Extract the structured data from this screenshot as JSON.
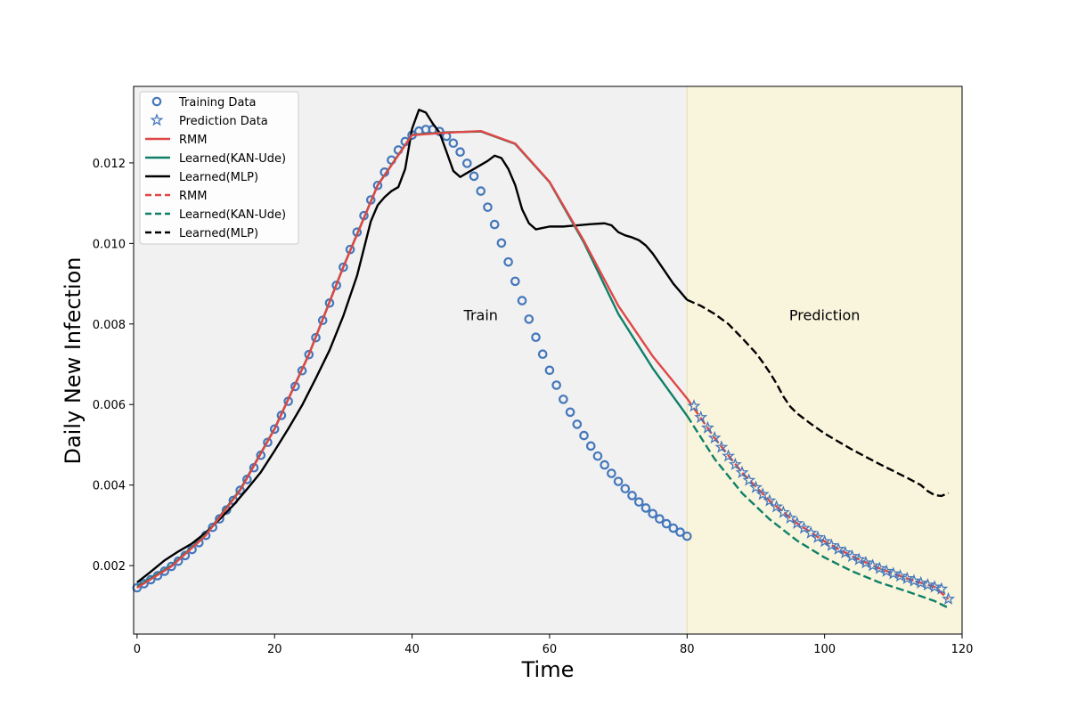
{
  "chart_data": {
    "type": "line",
    "xlabel": "Time",
    "ylabel": "Daily New Infection",
    "xlim": [
      -0.5,
      120
    ],
    "ylim": [
      0.0003,
      0.0139
    ],
    "xticks": [
      0,
      20,
      40,
      60,
      80,
      100,
      120
    ],
    "yticks": [
      0.002,
      0.004,
      0.006,
      0.008,
      0.01,
      0.012
    ],
    "ytick_labels": [
      "0.002",
      "0.004",
      "0.006",
      "0.008",
      "0.010",
      "0.012"
    ],
    "grid": false,
    "legend_position": "upper-left",
    "regions": [
      {
        "label": "Train",
        "x_range": [
          -0.5,
          80
        ],
        "color": "#f1f1f1",
        "label_x": 50,
        "label_y": 0.0081
      },
      {
        "label": "Prediction",
        "x_range": [
          80,
          120
        ],
        "color": "#f9f5dc",
        "label_x": 100,
        "label_y": 0.0081
      }
    ],
    "colors": {
      "data": "#4477bb",
      "rmm": "#e04646",
      "kan": "#0f8068",
      "mlp": "#000000"
    },
    "series": [
      {
        "name": "Training Data",
        "kind": "marker-circle",
        "x": [
          0,
          1,
          2,
          3,
          4,
          5,
          6,
          7,
          8,
          9,
          10,
          11,
          12,
          13,
          14,
          15,
          16,
          17,
          18,
          19,
          20,
          21,
          22,
          23,
          24,
          25,
          26,
          27,
          28,
          29,
          30,
          31,
          32,
          33,
          34,
          35,
          36,
          37,
          38,
          39,
          40,
          41,
          42,
          43,
          44,
          45,
          46,
          47,
          48,
          49,
          50,
          51,
          52,
          53,
          54,
          55,
          56,
          57,
          58,
          59,
          60,
          61,
          62,
          63,
          64,
          65,
          66,
          67,
          68,
          69,
          70,
          71,
          72,
          73,
          74,
          75,
          76,
          77,
          78,
          79,
          80
        ],
        "y": [
          0.00145,
          0.00155,
          0.00165,
          0.00175,
          0.00186,
          0.00198,
          0.00211,
          0.00225,
          0.0024,
          0.00257,
          0.00275,
          0.00295,
          0.00316,
          0.00338,
          0.00362,
          0.00387,
          0.00414,
          0.00443,
          0.00474,
          0.00506,
          0.00539,
          0.00573,
          0.00608,
          0.00645,
          0.00684,
          0.00724,
          0.00766,
          0.00809,
          0.00852,
          0.00896,
          0.00941,
          0.00985,
          0.01028,
          0.01069,
          0.01108,
          0.01144,
          0.01177,
          0.01207,
          0.01232,
          0.01253,
          0.01269,
          0.01279,
          0.01283,
          0.01283,
          0.01278,
          0.01266,
          0.01249,
          0.01227,
          0.01199,
          0.01167,
          0.0113,
          0.0109,
          0.01047,
          0.01001,
          0.00954,
          0.00906,
          0.00858,
          0.00812,
          0.00767,
          0.00725,
          0.00685,
          0.00648,
          0.00613,
          0.00581,
          0.00551,
          0.00523,
          0.00497,
          0.00472,
          0.0045,
          0.00429,
          0.00409,
          0.00391,
          0.00374,
          0.00358,
          0.00343,
          0.00329,
          0.00316,
          0.00304,
          0.00293,
          0.00283,
          0.00273
        ]
      },
      {
        "name": "Prediction Data",
        "kind": "marker-star",
        "x": [
          81,
          82,
          83,
          84,
          85,
          86,
          87,
          88,
          89,
          90,
          91,
          92,
          93,
          94,
          95,
          96,
          97,
          98,
          99,
          100,
          101,
          102,
          103,
          104,
          105,
          106,
          107,
          108,
          109,
          110,
          111,
          112,
          113,
          114,
          115,
          116,
          117,
          118
        ],
        "y": [
          0.00596,
          0.00568,
          0.00542,
          0.00517,
          0.00494,
          0.00472,
          0.00451,
          0.00431,
          0.00412,
          0.00394,
          0.00377,
          0.00361,
          0.00346,
          0.00332,
          0.00318,
          0.00305,
          0.00293,
          0.00281,
          0.0027,
          0.0026,
          0.0025,
          0.00241,
          0.00232,
          0.00223,
          0.00215,
          0.00207,
          0.002,
          0.00193,
          0.00186,
          0.0018,
          0.00174,
          0.00168,
          0.00162,
          0.00157,
          0.00152,
          0.00147,
          0.00142,
          0.00117
        ]
      },
      {
        "name": "RMM",
        "kind": "solid",
        "color_key": "rmm",
        "x": [
          0,
          5,
          10,
          15,
          20,
          25,
          30,
          35,
          40,
          45,
          50,
          55,
          60,
          65,
          70,
          75,
          80
        ],
        "y": [
          0.00145,
          0.00198,
          0.00275,
          0.00387,
          0.00539,
          0.00724,
          0.00941,
          0.01144,
          0.01269,
          0.01275,
          0.01279,
          0.01248,
          0.01153,
          0.01006,
          0.00845,
          0.0072,
          0.00615
        ]
      },
      {
        "name": "Learned(KAN-Ude)",
        "kind": "solid",
        "color_key": "kan",
        "x": [
          0,
          5,
          10,
          15,
          20,
          25,
          30,
          35,
          40,
          45,
          50,
          55,
          60,
          65,
          70,
          75,
          80
        ],
        "y": [
          0.00148,
          0.002,
          0.00277,
          0.00389,
          0.0054,
          0.00725,
          0.00942,
          0.01145,
          0.0127,
          0.01276,
          0.01278,
          0.01247,
          0.01152,
          0.01002,
          0.00825,
          0.0069,
          0.00572
        ]
      },
      {
        "name": "Learned(MLP)",
        "kind": "solid",
        "color_key": "mlp",
        "x": [
          0,
          2,
          4,
          6,
          8,
          10,
          12,
          14,
          16,
          18,
          20,
          22,
          24,
          26,
          28,
          30,
          32,
          34,
          35,
          36,
          37,
          38,
          39,
          40,
          41,
          42,
          43,
          44,
          45,
          46,
          47,
          48,
          49,
          50,
          51,
          52,
          53,
          54,
          55,
          56,
          57,
          58,
          60,
          62,
          64,
          66,
          68,
          69,
          70,
          71,
          72,
          73,
          74,
          75,
          76,
          78,
          80
        ],
        "y": [
          0.00158,
          0.00185,
          0.00213,
          0.00235,
          0.00255,
          0.00282,
          0.00315,
          0.0035,
          0.0039,
          0.00432,
          0.00485,
          0.0054,
          0.00598,
          0.00665,
          0.00735,
          0.0082,
          0.0092,
          0.01055,
          0.01095,
          0.01115,
          0.0113,
          0.0114,
          0.01185,
          0.01285,
          0.01332,
          0.01325,
          0.01298,
          0.01275,
          0.01228,
          0.0118,
          0.01165,
          0.01175,
          0.01185,
          0.01195,
          0.01205,
          0.01218,
          0.01212,
          0.01185,
          0.01145,
          0.01085,
          0.0105,
          0.01035,
          0.01042,
          0.01042,
          0.01045,
          0.01048,
          0.0105,
          0.01045,
          0.01028,
          0.0102,
          0.01015,
          0.01008,
          0.00995,
          0.00975,
          0.0095,
          0.009,
          0.0086
        ]
      },
      {
        "name": "RMM",
        "kind": "dashed",
        "color_key": "rmm",
        "x": [
          80,
          84,
          88,
          92,
          96,
          100,
          104,
          108,
          112,
          116,
          118
        ],
        "y": [
          0.00615,
          0.00517,
          0.00431,
          0.00361,
          0.00305,
          0.0026,
          0.00223,
          0.00193,
          0.00168,
          0.00147,
          0.00117
        ]
      },
      {
        "name": "Learned(KAN-Ude)",
        "kind": "dashed",
        "color_key": "kan",
        "x": [
          80,
          84,
          88,
          92,
          96,
          100,
          104,
          108,
          112,
          116,
          118
        ],
        "y": [
          0.00572,
          0.00465,
          0.0038,
          0.00315,
          0.00262,
          0.0022,
          0.00186,
          0.00158,
          0.00136,
          0.00112,
          0.00095
        ]
      },
      {
        "name": "Learned(MLP)",
        "kind": "dashed",
        "color_key": "mlp",
        "x": [
          80,
          82,
          84,
          86,
          88,
          90,
          91,
          92,
          93,
          94,
          95,
          96,
          98,
          100,
          102,
          104,
          106,
          108,
          110,
          112,
          114,
          115,
          116,
          117,
          118
        ],
        "y": [
          0.0086,
          0.00845,
          0.00825,
          0.008,
          0.00765,
          0.00728,
          0.00705,
          0.0068,
          0.00652,
          0.0062,
          0.00595,
          0.00578,
          0.00552,
          0.00528,
          0.00508,
          0.00488,
          0.0047,
          0.00452,
          0.00435,
          0.00418,
          0.004,
          0.00385,
          0.00375,
          0.00373,
          0.0038
        ]
      }
    ]
  }
}
